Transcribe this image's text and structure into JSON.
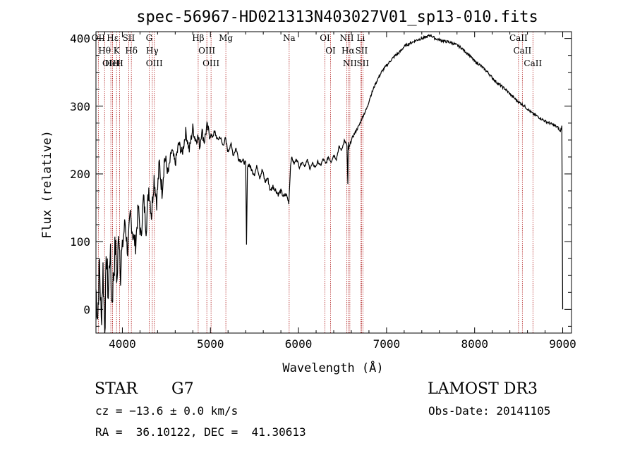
{
  "chart_data": {
    "type": "line",
    "title": "spec-56967-HD021313N403027V01_sp13-010.fits",
    "xlabel": "Wavelength (Å)",
    "ylabel": "Flux (relative)",
    "xlim": [
      3700,
      9100
    ],
    "ylim": [
      -35,
      410
    ],
    "x_ticks": [
      4000,
      5000,
      6000,
      7000,
      8000,
      9000
    ],
    "y_ticks": [
      0,
      100,
      200,
      300,
      400
    ],
    "series": [
      {
        "name": "flux",
        "x": [
          3700,
          3720,
          3740,
          3760,
          3780,
          3800,
          3820,
          3840,
          3860,
          3880,
          3900,
          3920,
          3940,
          3960,
          3980,
          4000,
          4030,
          4060,
          4090,
          4120,
          4150,
          4180,
          4210,
          4240,
          4270,
          4300,
          4330,
          4360,
          4390,
          4420,
          4450,
          4480,
          4520,
          4560,
          4600,
          4640,
          4680,
          4720,
          4760,
          4800,
          4830,
          4860,
          4880,
          4900,
          4930,
          4960,
          4990,
          5020,
          5050,
          5080,
          5110,
          5140,
          5170,
          5200,
          5230,
          5260,
          5290,
          5320,
          5350,
          5380,
          5400,
          5410,
          5420,
          5440,
          5470,
          5500,
          5530,
          5560,
          5590,
          5620,
          5650,
          5680,
          5710,
          5740,
          5770,
          5800,
          5830,
          5860,
          5890,
          5910,
          5920,
          5950,
          5980,
          6010,
          6040,
          6070,
          6100,
          6130,
          6160,
          6190,
          6220,
          6250,
          6280,
          6310,
          6340,
          6370,
          6400,
          6430,
          6460,
          6490,
          6520,
          6550,
          6560,
          6565,
          6570,
          6600,
          6630,
          6660,
          6690,
          6720,
          6750,
          6780,
          6810,
          6840,
          6870,
          6900,
          6950,
          7000,
          7050,
          7100,
          7150,
          7200,
          7250,
          7300,
          7350,
          7400,
          7450,
          7500,
          7550,
          7600,
          7650,
          7700,
          7750,
          7800,
          7850,
          7900,
          7950,
          8000,
          8050,
          8100,
          8150,
          8200,
          8250,
          8300,
          8350,
          8400,
          8450,
          8500,
          8550,
          8600,
          8650,
          8700,
          8750,
          8800,
          8850,
          8900,
          8950,
          8970,
          8990,
          9000
        ],
        "y": [
          30,
          -10,
          70,
          -20,
          60,
          -30,
          80,
          20,
          90,
          10,
          50,
          95,
          40,
          120,
          60,
          90,
          130,
          85,
          140,
          110,
          95,
          150,
          105,
          165,
          120,
          180,
          140,
          195,
          160,
          215,
          175,
          225,
          200,
          235,
          215,
          245,
          230,
          262,
          235,
          268,
          250,
          255,
          240,
          265,
          248,
          270,
          258,
          255,
          262,
          250,
          255,
          242,
          252,
          232,
          245,
          228,
          238,
          222,
          220,
          218,
          215,
          95,
          212,
          214,
          205,
          200,
          212,
          195,
          206,
          188,
          194,
          175,
          182,
          176,
          170,
          175,
          166,
          170,
          158,
          212,
          225,
          215,
          222,
          210,
          218,
          212,
          220,
          208,
          215,
          210,
          218,
          212,
          222,
          215,
          225,
          218,
          228,
          222,
          240,
          235,
          250,
          242,
          185,
          245,
          236,
          250,
          258,
          265,
          272,
          282,
          290,
          298,
          312,
          322,
          332,
          340,
          352,
          360,
          368,
          375,
          380,
          388,
          392,
          395,
          398,
          400,
          402,
          405,
          400,
          398,
          396,
          395,
          393,
          390,
          386,
          380,
          374,
          366,
          362,
          356,
          350,
          342,
          335,
          330,
          325,
          318,
          312,
          306,
          302,
          296,
          290,
          286,
          282,
          278,
          275,
          272,
          268,
          262,
          270,
          0
        ]
      }
    ],
    "lines": [
      {
        "name": "Hθ",
        "wave": 3798
      },
      {
        "name": "OII",
        "wave": 3727
      },
      {
        "name": "OIII",
        "wave": 3869
      },
      {
        "name": "Hε",
        "wave": 3889
      },
      {
        "name": "HeI",
        "wave": 3889
      },
      {
        "name": "K",
        "wave": 3934
      },
      {
        "name": "H",
        "wave": 3969
      },
      {
        "name": "SII",
        "wave": 4072
      },
      {
        "name": "Hδ",
        "wave": 4102
      },
      {
        "name": "G",
        "wave": 4304
      },
      {
        "name": "Hγ",
        "wave": 4340
      },
      {
        "name": "OIII",
        "wave": 4363
      },
      {
        "name": "Hβ",
        "wave": 4861
      },
      {
        "name": "OIII",
        "wave": 4959
      },
      {
        "name": "OIII",
        "wave": 5007
      },
      {
        "name": "Mg",
        "wave": 5175
      },
      {
        "name": "Na",
        "wave": 5894
      },
      {
        "name": "OI",
        "wave": 6300
      },
      {
        "name": "OI",
        "wave": 6364
      },
      {
        "name": "NII",
        "wave": 6548
      },
      {
        "name": "Hα",
        "wave": 6563
      },
      {
        "name": "NII",
        "wave": 6583
      },
      {
        "name": "Li",
        "wave": 6708
      },
      {
        "name": "SII",
        "wave": 6716
      },
      {
        "name": "SII",
        "wave": 6731
      },
      {
        "name": "CaII",
        "wave": 8498
      },
      {
        "name": "CaII",
        "wave": 8542
      },
      {
        "name": "CaII",
        "wave": 8662
      }
    ]
  },
  "info": {
    "class": "STAR",
    "subclass": "G7",
    "survey": "LAMOST DR3",
    "cz": "cz = −13.6 ± 0.0 km/s",
    "obs_date": "Obs-Date: 20141105",
    "radec": "RA =  36.10122, DEC =  41.30613"
  },
  "style": {
    "line_color": "#000000",
    "marker_color": "#b22222"
  }
}
